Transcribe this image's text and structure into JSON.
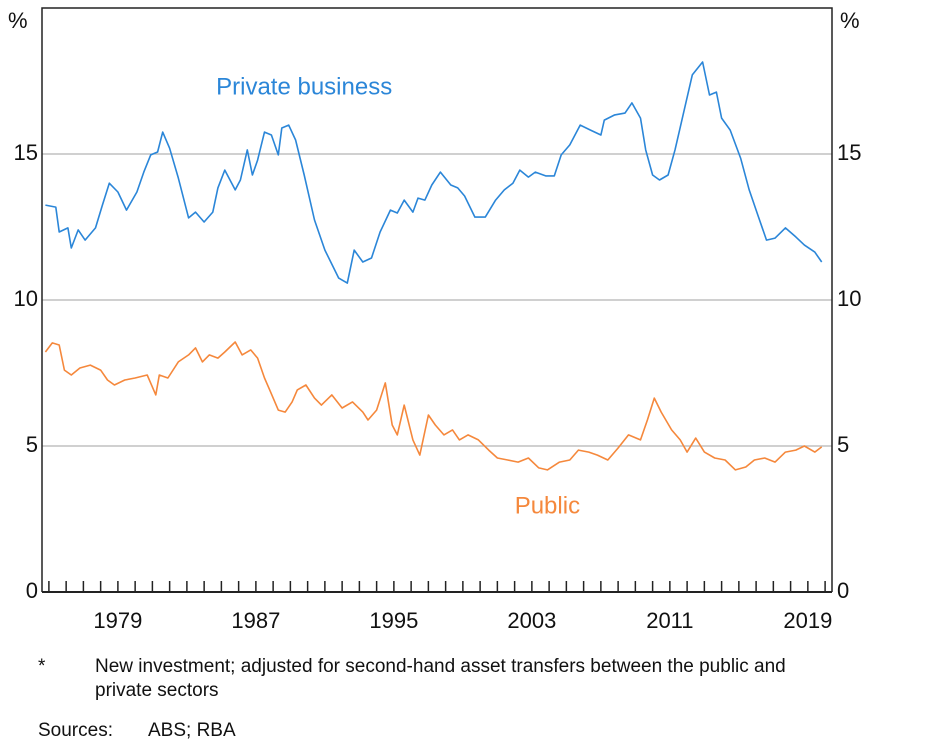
{
  "chart_data": {
    "type": "line",
    "y_unit": "%",
    "y2_unit": "%",
    "annotations": [
      {
        "text": "Private business",
        "color": "#2b86d8",
        "x": 1989.8,
        "y": 17.25
      },
      {
        "text": "Public",
        "color": "#f5883c",
        "x": 2003.9,
        "y": 2.9
      }
    ],
    "xlim": [
      1974.6,
      2020.4
    ],
    "xticks": [
      1979,
      1987,
      1995,
      2003,
      2011,
      2019
    ],
    "xminorticks": [
      1975,
      1976,
      1977,
      1978,
      1979,
      1980,
      1981,
      1982,
      1983,
      1984,
      1985,
      1986,
      1987,
      1988,
      1989,
      1990,
      1991,
      1992,
      1993,
      1994,
      1995,
      1996,
      1997,
      1998,
      1999,
      2000,
      2001,
      2002,
      2003,
      2004,
      2005,
      2006,
      2007,
      2008,
      2009,
      2010,
      2011,
      2012,
      2013,
      2014,
      2015,
      2016,
      2017,
      2018,
      2019,
      2020
    ],
    "ylim": [
      0,
      20
    ],
    "yticks": [
      0,
      5,
      10,
      15
    ],
    "y2lim": [
      0,
      20
    ],
    "y2ticks": [
      0,
      5,
      10,
      15
    ],
    "grid": true,
    "series": [
      {
        "name": "Private business",
        "color": "#2b86d8",
        "x": [
          1974.8,
          1975.4,
          1975.6,
          1976.1,
          1976.3,
          1976.7,
          1977.1,
          1977.7,
          1978.1,
          1978.5,
          1979.0,
          1979.5,
          1980.1,
          1980.5,
          1980.9,
          1981.3,
          1981.6,
          1982.0,
          1982.5,
          1983.1,
          1983.5,
          1984.0,
          1984.5,
          1984.8,
          1985.2,
          1985.8,
          1986.1,
          1986.5,
          1986.8,
          1987.1,
          1987.5,
          1987.9,
          1988.3,
          1988.5,
          1988.9,
          1989.3,
          1989.8,
          1990.4,
          1991.0,
          1991.8,
          1992.3,
          1992.7,
          1993.2,
          1993.7,
          1994.2,
          1994.8,
          1995.2,
          1995.6,
          1996.1,
          1996.4,
          1996.8,
          1997.2,
          1997.7,
          1998.3,
          1998.7,
          1999.1,
          1999.7,
          2000.3,
          2000.9,
          2001.4,
          2001.9,
          2002.3,
          2002.8,
          2003.2,
          2003.8,
          2004.3,
          2004.7,
          2005.2,
          2005.8,
          2006.4,
          2007.0,
          2007.2,
          2007.8,
          2008.4,
          2008.8,
          2009.3,
          2009.6,
          2010.0,
          2010.4,
          2010.9,
          2011.3,
          2011.7,
          2012.3,
          2012.9,
          2013.3,
          2013.7,
          2014.0,
          2014.5,
          2015.1,
          2015.6,
          2016.1,
          2016.6,
          2017.1,
          2017.7,
          2018.3,
          2018.8,
          2019.4,
          2019.8
        ],
        "values": [
          13.25,
          13.18,
          12.33,
          12.47,
          11.78,
          12.4,
          12.05,
          12.47,
          13.25,
          14.0,
          13.7,
          13.08,
          13.7,
          14.38,
          14.97,
          15.07,
          15.75,
          15.2,
          14.18,
          12.81,
          13.01,
          12.67,
          13.01,
          13.84,
          14.45,
          13.77,
          14.11,
          15.14,
          14.28,
          14.79,
          15.75,
          15.65,
          14.97,
          15.89,
          15.99,
          15.48,
          14.28,
          12.74,
          11.71,
          10.75,
          10.58,
          11.71,
          11.3,
          11.44,
          12.33,
          13.08,
          12.98,
          13.42,
          13.01,
          13.49,
          13.42,
          13.94,
          14.38,
          13.94,
          13.84,
          13.56,
          12.84,
          12.84,
          13.42,
          13.77,
          14.0,
          14.45,
          14.21,
          14.38,
          14.25,
          14.25,
          14.97,
          15.31,
          15.99,
          15.82,
          15.65,
          16.16,
          16.34,
          16.4,
          16.75,
          16.23,
          15.14,
          14.28,
          14.11,
          14.28,
          15.14,
          16.16,
          17.71,
          18.15,
          17.02,
          17.12,
          16.23,
          15.82,
          14.86,
          13.77,
          12.91,
          12.05,
          12.12,
          12.47,
          12.16,
          11.88,
          11.64,
          11.3
        ]
      },
      {
        "name": "Public",
        "color": "#f5883c",
        "x": [
          1974.8,
          1975.2,
          1975.6,
          1975.9,
          1976.3,
          1976.8,
          1977.4,
          1978.0,
          1978.4,
          1978.8,
          1979.4,
          1980.0,
          1980.7,
          1981.2,
          1981.4,
          1981.9,
          1982.5,
          1983.1,
          1983.5,
          1983.9,
          1984.3,
          1984.8,
          1985.2,
          1985.8,
          1986.2,
          1986.7,
          1987.1,
          1987.5,
          1987.8,
          1988.3,
          1988.7,
          1989.1,
          1989.4,
          1989.9,
          1990.4,
          1990.8,
          1991.4,
          1992.0,
          1992.6,
          1993.2,
          1993.5,
          1994.0,
          1994.5,
          1994.9,
          1995.2,
          1995.6,
          1996.1,
          1996.5,
          1997.0,
          1997.4,
          1997.9,
          1998.4,
          1998.8,
          1999.3,
          1999.9,
          2000.5,
          2001.0,
          2001.6,
          2002.2,
          2002.8,
          2003.4,
          2003.9,
          2004.6,
          2005.2,
          2005.7,
          2006.3,
          2006.8,
          2007.4,
          2008.0,
          2008.6,
          2009.3,
          2009.7,
          2010.1,
          2010.5,
          2011.1,
          2011.6,
          2012.0,
          2012.5,
          2013.0,
          2013.6,
          2014.2,
          2014.8,
          2015.4,
          2015.9,
          2016.5,
          2017.1,
          2017.7,
          2018.3,
          2018.8,
          2019.4,
          2019.8
        ],
        "values": [
          8.22,
          8.53,
          8.46,
          7.6,
          7.43,
          7.67,
          7.77,
          7.6,
          7.26,
          7.09,
          7.26,
          7.33,
          7.43,
          6.75,
          7.43,
          7.33,
          7.88,
          8.12,
          8.36,
          7.88,
          8.12,
          8.01,
          8.22,
          8.56,
          8.12,
          8.29,
          8.01,
          7.33,
          6.92,
          6.23,
          6.16,
          6.51,
          6.92,
          7.09,
          6.64,
          6.4,
          6.75,
          6.3,
          6.51,
          6.16,
          5.89,
          6.23,
          7.16,
          5.72,
          5.38,
          6.4,
          5.21,
          4.69,
          6.06,
          5.72,
          5.38,
          5.55,
          5.21,
          5.38,
          5.21,
          4.86,
          4.59,
          4.52,
          4.45,
          4.59,
          4.25,
          4.18,
          4.45,
          4.52,
          4.86,
          4.79,
          4.69,
          4.52,
          4.93,
          5.38,
          5.21,
          5.89,
          6.64,
          6.16,
          5.55,
          5.21,
          4.79,
          5.27,
          4.79,
          4.59,
          4.52,
          4.18,
          4.28,
          4.52,
          4.59,
          4.45,
          4.79,
          4.86,
          5.0,
          4.79,
          4.97
        ]
      }
    ]
  },
  "footnote": {
    "marker": "*",
    "text": "New investment; adjusted for second-hand asset transfers between the public and private sectors"
  },
  "sources": {
    "label": "Sources:",
    "text": "ABS; RBA"
  }
}
